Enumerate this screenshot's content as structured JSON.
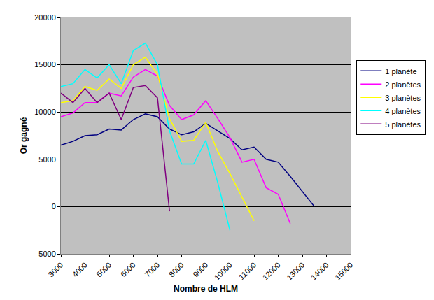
{
  "chart_data": {
    "type": "line",
    "x_label": "Nombre de HLM",
    "y_label": "Or gagné",
    "x": [
      3000,
      3500,
      4000,
      4500,
      5000,
      5500,
      6000,
      6500,
      7000,
      7500,
      8000,
      8500,
      9000,
      9500,
      10000,
      10500,
      11000,
      11500,
      12000,
      12500,
      13000,
      13500,
      14000,
      14500,
      15000
    ],
    "series": [
      {
        "name": "1 planète",
        "color": "#000080",
        "values": [
          6500,
          6900,
          7500,
          7600,
          8200,
          8100,
          9200,
          9800,
          9500,
          8200,
          7600,
          7900,
          8800,
          8000,
          7200,
          6000,
          6300,
          5000,
          4700,
          3200,
          1600,
          0,
          null,
          null,
          null
        ]
      },
      {
        "name": "2 planètes",
        "color": "#FF00FF",
        "values": [
          9500,
          9900,
          11000,
          11000,
          12000,
          11700,
          13700,
          14500,
          13800,
          10700,
          9200,
          9700,
          11200,
          9300,
          7300,
          4700,
          5000,
          2000,
          1300,
          -1800,
          null,
          null,
          null,
          null,
          null
        ]
      },
      {
        "name": "3 planètes",
        "color": "#FFFF00",
        "values": [
          11000,
          11200,
          12700,
          12300,
          13500,
          12500,
          15000,
          15800,
          14000,
          9300,
          6900,
          7000,
          8900,
          5800,
          3500,
          1000,
          -1500,
          null,
          null,
          null,
          null,
          null,
          null,
          null,
          null
        ]
      },
      {
        "name": "4 planètes",
        "color": "#00FFFF",
        "values": [
          12700,
          13000,
          14500,
          13600,
          15000,
          13000,
          16500,
          17300,
          15000,
          8000,
          4500,
          4500,
          7000,
          2500,
          -2500,
          null,
          null,
          null,
          null,
          null,
          null,
          null,
          null,
          null,
          null
        ]
      },
      {
        "name": "5 planètes",
        "color": "#800080",
        "values": [
          12000,
          11000,
          12500,
          11000,
          12000,
          9200,
          12600,
          12800,
          11500,
          -500,
          null,
          null,
          null,
          null,
          null,
          null,
          null,
          null,
          null,
          null,
          null,
          null,
          null,
          null,
          null
        ]
      }
    ],
    "xlim": [
      3000,
      15000
    ],
    "xticks": [
      3000,
      4000,
      5000,
      6000,
      7000,
      8000,
      9000,
      10000,
      11000,
      12000,
      13000,
      14000,
      15000
    ],
    "ylim": [
      -5000,
      20000
    ],
    "yticks": [
      -5000,
      0,
      5000,
      10000,
      15000,
      20000
    ],
    "grid": true,
    "legend": "right"
  }
}
